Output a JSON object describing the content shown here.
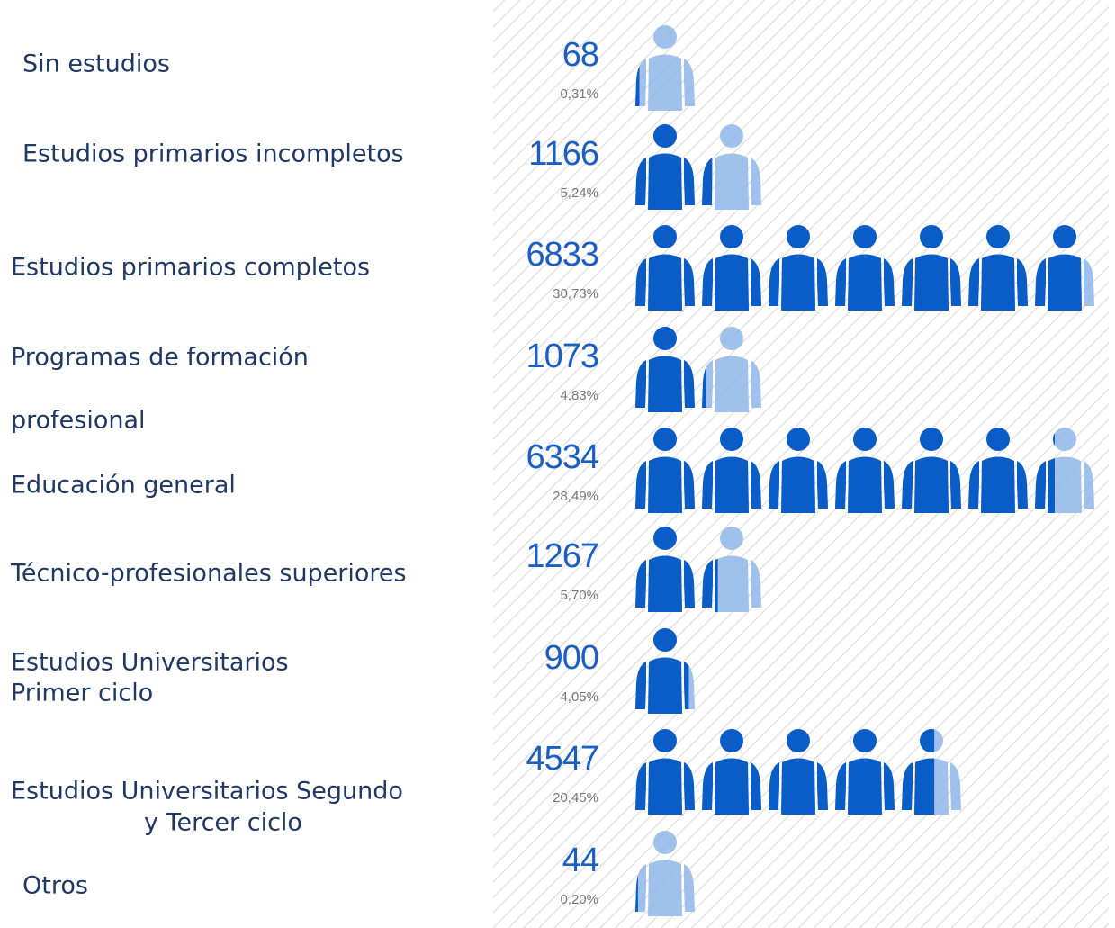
{
  "chart_data": {
    "type": "pictogram",
    "categories": [
      [
        "Sin estudios"
      ],
      [
        "Estudios primarios incompletos"
      ],
      [
        "Estudios primarios completos"
      ],
      [
        "Programas de formación",
        "profesional"
      ],
      [
        "Educación general"
      ],
      [
        "Técnico-profesionales superiores"
      ],
      [
        "Estudios Universitarios",
        "Primer ciclo"
      ],
      [
        "Estudios Universitarios Segundo",
        "y Tercer ciclo"
      ],
      [
        "Otros"
      ]
    ],
    "values": [
      68,
      1166,
      6833,
      1073,
      6334,
      1267,
      900,
      4547,
      44
    ],
    "shares": [
      0.31,
      5.24,
      30.73,
      4.83,
      28.49,
      5.7,
      4.05,
      20.45,
      0.2
    ],
    "share_labels": [
      "0,31%",
      "5,24%",
      "30,73%",
      "4,83%",
      "28,49%",
      "5,70%",
      "4,05%",
      "20,45%",
      "0,20%"
    ],
    "icon_value": 1000,
    "color": "#0a5cc6",
    "empty_color": "#8fb6e8"
  }
}
